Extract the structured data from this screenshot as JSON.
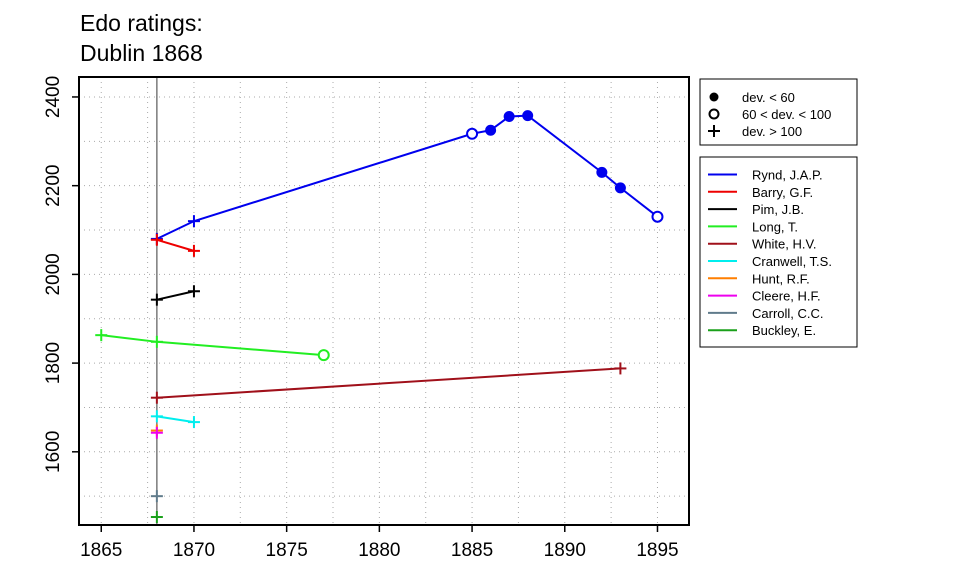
{
  "title_line1": "Edo ratings:",
  "title_line2": "Dublin 1868",
  "chart_data": {
    "type": "line",
    "xlim": [
      1863.8,
      1896.7
    ],
    "ylim": [
      1435,
      2445
    ],
    "x_ticks": [
      1865,
      1870,
      1875,
      1880,
      1885,
      1890,
      1895
    ],
    "y_ticks": [
      1600,
      1800,
      2000,
      2200,
      2400
    ],
    "grid": true,
    "event_year": 1868,
    "marker_legend": [
      {
        "label": "dev. < 60",
        "marker": "filled-circle"
      },
      {
        "label": "60 < dev. < 100",
        "marker": "open-circle"
      },
      {
        "label": "dev. > 100",
        "marker": "plus"
      }
    ],
    "series": [
      {
        "name": "Rynd, J.A.P.",
        "color": "#0000ee",
        "points": [
          {
            "x": 1868,
            "y": 2080,
            "m": "plus"
          },
          {
            "x": 1870,
            "y": 2120,
            "m": "plus"
          },
          {
            "x": 1885,
            "y": 2317,
            "m": "open"
          },
          {
            "x": 1886,
            "y": 2325,
            "m": "filled"
          },
          {
            "x": 1887,
            "y": 2356,
            "m": "filled"
          },
          {
            "x": 1888,
            "y": 2358,
            "m": "filled"
          },
          {
            "x": 1892,
            "y": 2230,
            "m": "filled"
          },
          {
            "x": 1893,
            "y": 2195,
            "m": "filled"
          },
          {
            "x": 1895,
            "y": 2130,
            "m": "open"
          }
        ]
      },
      {
        "name": "Barry, G.F.",
        "color": "#ee0000",
        "points": [
          {
            "x": 1868,
            "y": 2078,
            "m": "plus"
          },
          {
            "x": 1870,
            "y": 2053,
            "m": "plus"
          }
        ]
      },
      {
        "name": "Pim, J.B.",
        "color": "#000000",
        "points": [
          {
            "x": 1868,
            "y": 1943,
            "m": "plus"
          },
          {
            "x": 1870,
            "y": 1962,
            "m": "plus"
          }
        ]
      },
      {
        "name": "Long, T.",
        "color": "#22ee22",
        "points": [
          {
            "x": 1865,
            "y": 1863,
            "m": "plus"
          },
          {
            "x": 1868,
            "y": 1848,
            "m": "plus"
          },
          {
            "x": 1877,
            "y": 1818,
            "m": "open"
          }
        ]
      },
      {
        "name": "White, H.V.",
        "color": "#a0101a",
        "points": [
          {
            "x": 1868,
            "y": 1722,
            "m": "plus"
          },
          {
            "x": 1893,
            "y": 1788,
            "m": "plus"
          }
        ]
      },
      {
        "name": "Cranwell, T.S.",
        "color": "#00eeee",
        "points": [
          {
            "x": 1868,
            "y": 1680,
            "m": "plus"
          },
          {
            "x": 1870,
            "y": 1667,
            "m": "plus"
          }
        ]
      },
      {
        "name": "Hunt, R.F.",
        "color": "#ff7f00",
        "points": [
          {
            "x": 1868,
            "y": 1648,
            "m": "plus"
          }
        ]
      },
      {
        "name": "Cleere, H.F.",
        "color": "#ee00ee",
        "points": [
          {
            "x": 1868,
            "y": 1643,
            "m": "plus"
          }
        ]
      },
      {
        "name": "Carroll, C.C.",
        "color": "#607b8b",
        "points": [
          {
            "x": 1868,
            "y": 1500,
            "m": "plus"
          }
        ]
      },
      {
        "name": "Buckley, E.",
        "color": "#1aa01a",
        "points": [
          {
            "x": 1868,
            "y": 1453,
            "m": "plus"
          }
        ]
      }
    ]
  }
}
